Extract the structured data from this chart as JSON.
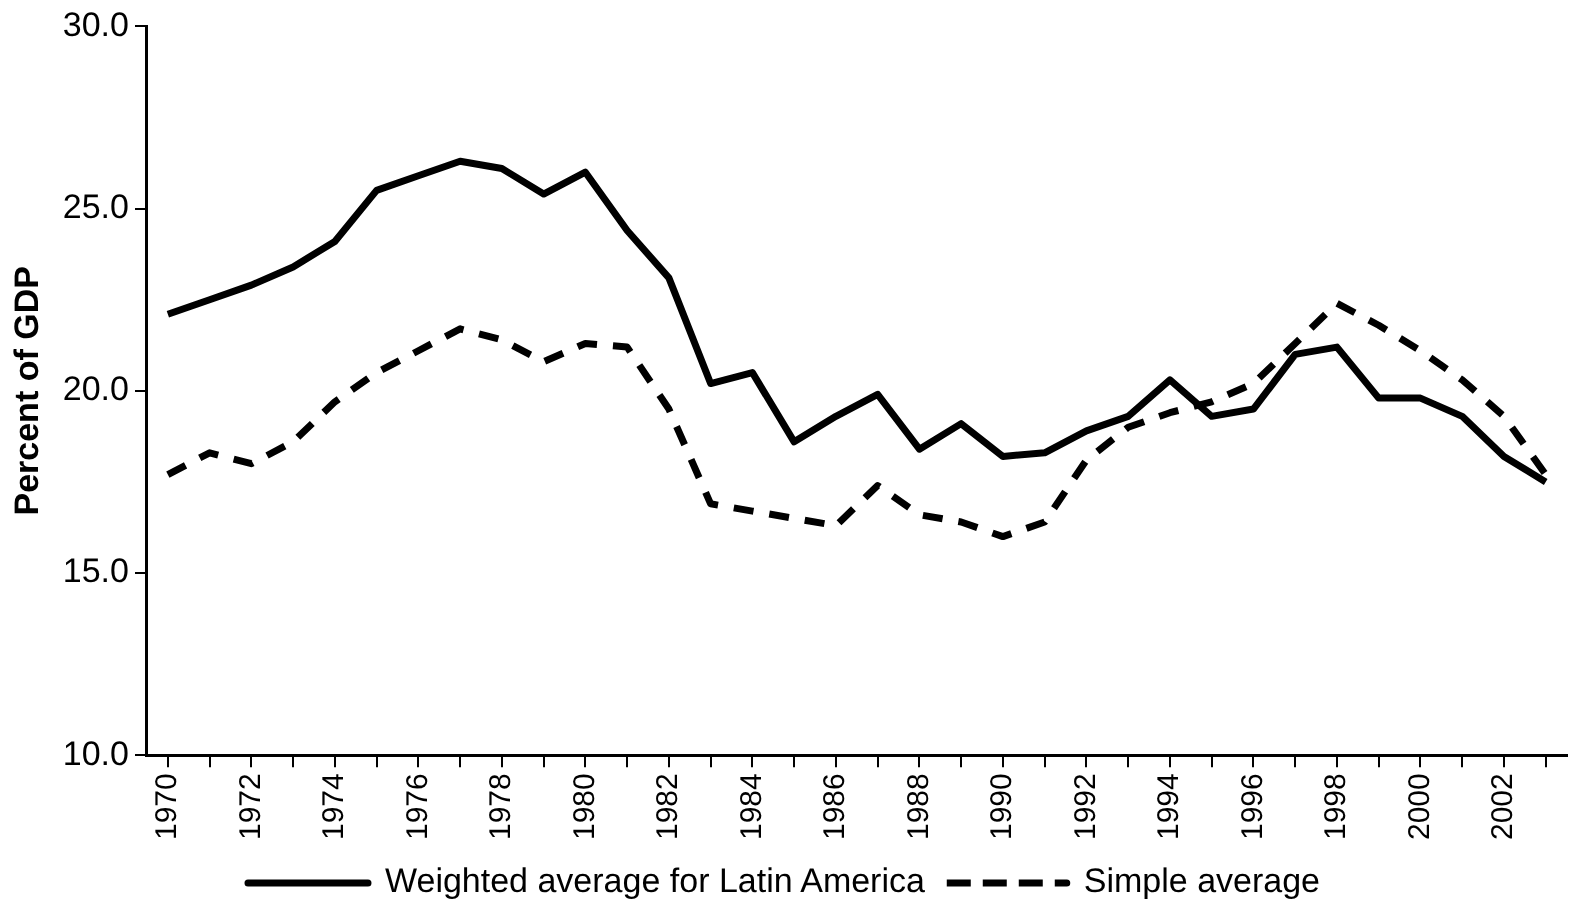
{
  "chart_data": {
    "type": "line",
    "ylabel": "Percent of GDP",
    "categories": [
      "1970",
      null,
      "1972",
      null,
      "1974",
      null,
      "1976",
      null,
      "1978",
      null,
      "1980",
      null,
      "1982",
      null,
      "1984",
      null,
      "1986",
      null,
      "1988",
      null,
      "1990",
      null,
      "1992",
      null,
      "1994",
      null,
      "1996",
      null,
      "1998",
      null,
      "2000",
      null,
      "2002",
      null
    ],
    "series": [
      {
        "name": "Weighted average for Latin America",
        "color": "#000000",
        "line_style": "solid",
        "values": [
          22.1,
          22.5,
          22.9,
          23.4,
          24.1,
          25.5,
          25.9,
          26.3,
          26.1,
          25.4,
          26.0,
          24.4,
          23.1,
          20.2,
          20.5,
          18.6,
          19.3,
          19.9,
          18.4,
          19.1,
          18.2,
          18.3,
          18.9,
          19.3,
          20.3,
          19.3,
          19.5,
          21.0,
          21.2,
          19.8,
          19.8,
          19.3,
          18.2,
          17.5
        ]
      },
      {
        "name": "Simple average",
        "color": "#000000",
        "line_style": "dashed",
        "values": [
          17.7,
          18.3,
          18.0,
          18.6,
          19.7,
          20.5,
          21.1,
          21.7,
          21.4,
          20.8,
          21.3,
          21.2,
          19.5,
          16.9,
          16.7,
          16.5,
          16.3,
          17.4,
          16.6,
          16.4,
          16.0,
          16.4,
          18.1,
          19.0,
          19.4,
          19.7,
          20.2,
          21.3,
          22.4,
          21.8,
          21.1,
          20.3,
          19.3,
          17.7
        ]
      }
    ],
    "ylim": [
      10,
      30
    ],
    "yticks": [
      {
        "value": 10,
        "label": "10.0"
      },
      {
        "value": 15,
        "label": "15.0"
      },
      {
        "value": 20,
        "label": "20.0"
      },
      {
        "value": 25,
        "label": "25.0"
      },
      {
        "value": 30,
        "label": "30.0"
      }
    ],
    "grid": false,
    "legend": "bottom",
    "marker": "none"
  }
}
